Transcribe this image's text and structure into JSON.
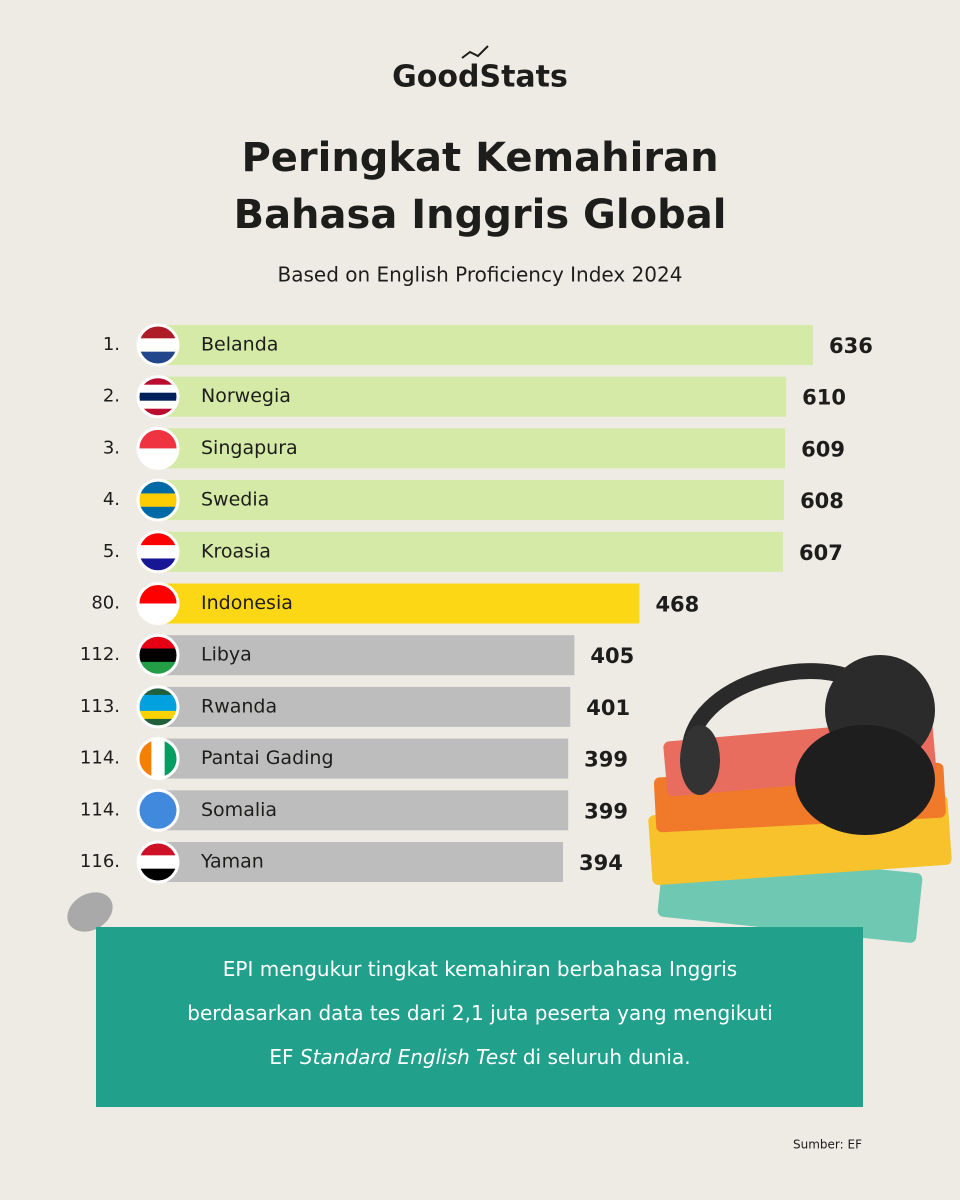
{
  "logo": "GoodStats",
  "chart_data": {
    "type": "bar",
    "orientation": "horizontal",
    "title": [
      "Peringkat Kemahiran",
      "Bahasa Inggris Global"
    ],
    "subtitle": "Based on English Proficiency Index 2024",
    "ranks": [
      "1.",
      "2.",
      "3.",
      "4.",
      "5.",
      "80.",
      "112.",
      "113.",
      "114.",
      "114.",
      "116."
    ],
    "categories": [
      "Belanda",
      "Norwegia",
      "Singapura",
      "Swedia",
      "Kroasia",
      "Indonesia",
      "Libya",
      "Rwanda",
      "Pantai Gading",
      "Somalia",
      "Yaman"
    ],
    "values": [
      636,
      610,
      609,
      608,
      607,
      468,
      405,
      401,
      399,
      399,
      394
    ],
    "colors": [
      "#d4eaa6",
      "#d4eaa6",
      "#d4eaa6",
      "#d4eaa6",
      "#d4eaa6",
      "#fcd716",
      "#bdbdbd",
      "#bdbdbd",
      "#bdbdbd",
      "#bdbdbd",
      "#bdbdbd"
    ]
  },
  "note": {
    "lines": [
      [
        "EPI mengukur tingkat kemahiran berbahasa Inggris"
      ],
      [
        "berdasarkan data tes dari 2,1 juta peserta yang mengikuti"
      ],
      [
        "EF ",
        "Standard English Test",
        " di seluruh dunia."
      ]
    ]
  },
  "source": "Sumber: EF"
}
